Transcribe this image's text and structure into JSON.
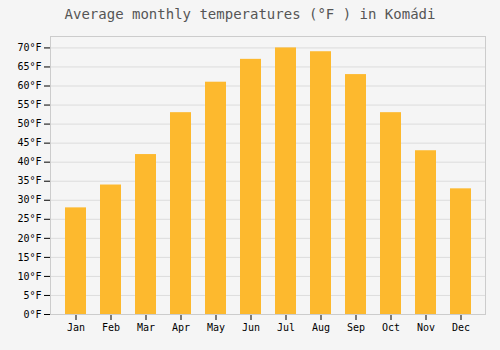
{
  "chart_data": {
    "type": "bar",
    "title": "Average monthly temperatures (°F ) in Komádi",
    "categories": [
      "Jan",
      "Feb",
      "Mar",
      "Apr",
      "May",
      "Jun",
      "Jul",
      "Aug",
      "Sep",
      "Oct",
      "Nov",
      "Dec"
    ],
    "values": [
      28,
      34,
      42,
      53,
      61,
      67,
      70,
      69,
      63,
      53,
      43,
      33
    ],
    "color": "#FDB92E",
    "ylim": [
      0,
      73
    ],
    "yticks": [
      {
        "value": 0,
        "label": "0°F"
      },
      {
        "value": 5,
        "label": "5°F"
      },
      {
        "value": 10,
        "label": "10°F"
      },
      {
        "value": 15,
        "label": "15°F"
      },
      {
        "value": 20,
        "label": "20°F"
      },
      {
        "value": 25,
        "label": "25°F"
      },
      {
        "value": 30,
        "label": "30°F"
      },
      {
        "value": 35,
        "label": "35°F"
      },
      {
        "value": 40,
        "label": "40°F"
      },
      {
        "value": 45,
        "label": "45°F"
      },
      {
        "value": 50,
        "label": "50°F"
      },
      {
        "value": 55,
        "label": "55°F"
      },
      {
        "value": 60,
        "label": "60°F"
      },
      {
        "value": 65,
        "label": "65°F"
      },
      {
        "value": 70,
        "label": "70°F"
      }
    ],
    "grid": true
  }
}
